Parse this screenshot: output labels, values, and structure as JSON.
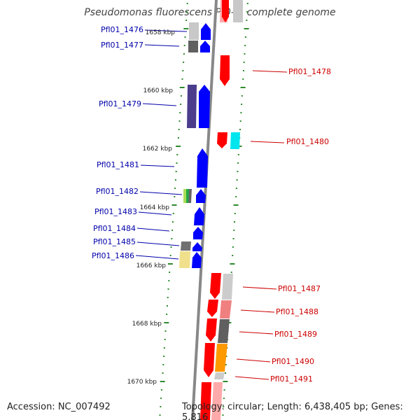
{
  "title": "Pseudomonas fluorescens Pf0-1, complete genome",
  "accession": "Accession: NC_007492",
  "topology": "Topology: circular; Length: 6,438,405 bp; Genes: 5,816",
  "scale_labels": [
    "1658 kbp",
    "1660 kbp",
    "1662 kbp",
    "1664 kbp",
    "1666 kbp",
    "1668 kbp",
    "1670 kbp"
  ],
  "colors": {
    "forward_label": "#0000aa",
    "reverse_label": "#cc0000",
    "forward_gene": "#0000ff",
    "reverse_gene": "#ff0000",
    "backbone": "#888888",
    "tick": "#2e8b2e"
  },
  "forward_genes": [
    {
      "label": "Pfl01_1476"
    },
    {
      "label": "Pfl01_1477"
    },
    {
      "label": "Pfl01_1479"
    },
    {
      "label": "Pfl01_1481"
    },
    {
      "label": "Pfl01_1482"
    },
    {
      "label": "Pfl01_1483"
    },
    {
      "label": "Pfl01_1484"
    },
    {
      "label": "Pfl01_1485"
    },
    {
      "label": "Pfl01_1486"
    }
  ],
  "reverse_genes": [
    {
      "label": "Pfl01_1478"
    },
    {
      "label": "Pfl01_1480"
    },
    {
      "label": "Pfl01_1487"
    },
    {
      "label": "Pfl01_1488"
    },
    {
      "label": "Pfl01_1489"
    },
    {
      "label": "Pfl01_1490"
    },
    {
      "label": "Pfl01_1491"
    }
  ]
}
